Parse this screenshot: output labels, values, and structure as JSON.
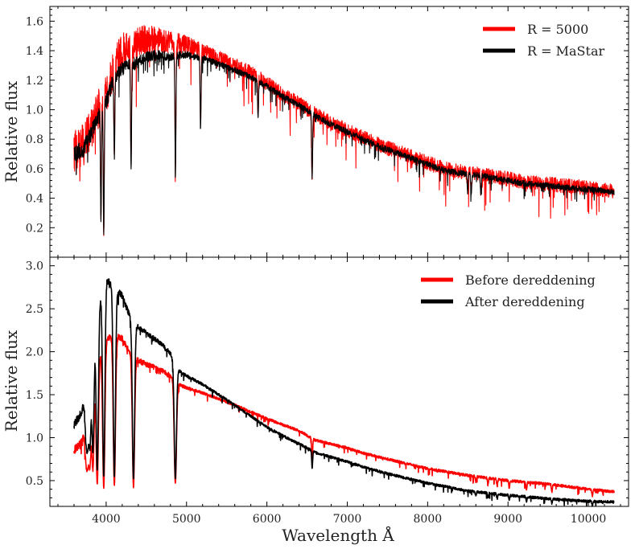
{
  "chart_data": [
    {
      "type": "line",
      "panel": "top",
      "title": "",
      "xlabel": "",
      "ylabel": "Relative flux",
      "xlim": [
        3300,
        10500
      ],
      "ylim": [
        0.0,
        1.7
      ],
      "xticks": [
        4000,
        5000,
        6000,
        7000,
        8000,
        9000,
        10000
      ],
      "yticks": [
        "0.2",
        "0.4",
        "0.6",
        "0.8",
        "1.0",
        "1.2",
        "1.4",
        "1.6"
      ],
      "show_x_tick_labels": false,
      "grid": false,
      "legend_position": "top-right",
      "series": [
        {
          "name": "R = 5000",
          "color": "#ff0000",
          "noise": 0.1,
          "x": [
            3600,
            3700,
            3800,
            3900,
            4000,
            4100,
            4200,
            4300,
            4400,
            4500,
            4600,
            4700,
            4800,
            4900,
            5000,
            5200,
            5400,
            5600,
            5800,
            6000,
            6200,
            6400,
            6600,
            6800,
            7000,
            7200,
            7400,
            7600,
            7800,
            8000,
            8200,
            8400,
            8600,
            8800,
            9000,
            9200,
            9400,
            9600,
            9800,
            10000,
            10200,
            10320
          ],
          "y": [
            0.7,
            0.75,
            0.85,
            1.0,
            1.1,
            1.3,
            1.4,
            1.42,
            1.45,
            1.48,
            1.48,
            1.47,
            1.45,
            1.45,
            1.44,
            1.4,
            1.35,
            1.3,
            1.25,
            1.18,
            1.1,
            1.04,
            0.97,
            0.91,
            0.86,
            0.81,
            0.76,
            0.72,
            0.68,
            0.64,
            0.6,
            0.58,
            0.57,
            0.55,
            0.53,
            0.51,
            0.5,
            0.49,
            0.48,
            0.47,
            0.455,
            0.45
          ]
        },
        {
          "name": "R = MaStar",
          "color": "#000000",
          "noise": 0.04,
          "x": [
            3600,
            3700,
            3800,
            3900,
            4000,
            4100,
            4200,
            4300,
            4400,
            4500,
            4600,
            4700,
            4800,
            4900,
            5000,
            5200,
            5400,
            5600,
            5800,
            6000,
            6200,
            6400,
            6600,
            6800,
            7000,
            7200,
            7400,
            7600,
            7800,
            8000,
            8200,
            8400,
            8600,
            8800,
            9000,
            9200,
            9400,
            9600,
            9800,
            10000,
            10200,
            10320
          ],
          "y": [
            0.7,
            0.72,
            0.82,
            0.95,
            1.05,
            1.22,
            1.28,
            1.3,
            1.32,
            1.36,
            1.37,
            1.37,
            1.36,
            1.37,
            1.37,
            1.35,
            1.31,
            1.27,
            1.22,
            1.16,
            1.09,
            1.03,
            0.96,
            0.9,
            0.85,
            0.8,
            0.75,
            0.71,
            0.67,
            0.63,
            0.59,
            0.57,
            0.56,
            0.54,
            0.52,
            0.5,
            0.49,
            0.48,
            0.47,
            0.46,
            0.45,
            0.44
          ]
        }
      ],
      "absorption_lines": [
        {
          "x": 3970,
          "depth": 0.85
        },
        {
          "x": 3935,
          "depth": 0.75
        },
        {
          "x": 4102,
          "depth": 0.45
        },
        {
          "x": 4310,
          "depth": 0.55
        },
        {
          "x": 4862,
          "depth": 0.6
        },
        {
          "x": 5175,
          "depth": 0.35
        },
        {
          "x": 5890,
          "depth": 0.2
        },
        {
          "x": 6563,
          "depth": 0.45
        },
        {
          "x": 8498,
          "depth": 0.22
        },
        {
          "x": 8542,
          "depth": 0.25
        },
        {
          "x": 8662,
          "depth": 0.23
        }
      ]
    },
    {
      "type": "line",
      "panel": "bottom",
      "title": "",
      "xlabel": "Wavelength Å",
      "ylabel": "Relative flux",
      "xlim": [
        3300,
        10500
      ],
      "ylim": [
        0.2,
        3.1
      ],
      "xticks": [
        4000,
        5000,
        6000,
        7000,
        8000,
        9000,
        10000
      ],
      "xtick_labels": [
        "4000",
        "5000",
        "6000",
        "7000",
        "8000",
        "9000",
        "10000"
      ],
      "yticks": [
        "0.5",
        "1.0",
        "1.5",
        "2.0",
        "2.5",
        "3.0"
      ],
      "show_x_tick_labels": true,
      "grid": false,
      "legend_position": "top-right",
      "series": [
        {
          "name": "Before dereddening",
          "color": "#ff0000",
          "noise": 0.03,
          "x": [
            3600,
            3700,
            3800,
            3900,
            4000,
            4100,
            4200,
            4300,
            4400,
            4500,
            4600,
            4700,
            4800,
            4900,
            5000,
            5200,
            5400,
            5600,
            5800,
            6000,
            6200,
            6400,
            6600,
            6700,
            7000,
            7200,
            7500,
            8000,
            8500,
            9000,
            9500,
            10000,
            10320
          ],
          "y": [
            0.85,
            0.95,
            1.4,
            1.9,
            2.15,
            2.2,
            2.15,
            1.98,
            1.9,
            1.85,
            1.82,
            1.78,
            1.72,
            1.62,
            1.58,
            1.52,
            1.45,
            1.38,
            1.3,
            1.22,
            1.15,
            1.08,
            0.97,
            0.95,
            0.88,
            0.82,
            0.75,
            0.64,
            0.56,
            0.5,
            0.46,
            0.4,
            0.37
          ]
        },
        {
          "name": "After dereddening",
          "color": "#000000",
          "noise": 0.03,
          "x": [
            3600,
            3700,
            3800,
            3900,
            4000,
            4100,
            4200,
            4300,
            4400,
            4500,
            4600,
            4700,
            4800,
            4900,
            5000,
            5200,
            5400,
            5600,
            5800,
            6000,
            6200,
            6400,
            6600,
            6700,
            7000,
            7200,
            7500,
            8000,
            8500,
            9000,
            9500,
            10000,
            10320
          ],
          "y": [
            1.15,
            1.3,
            1.9,
            2.55,
            2.85,
            2.75,
            2.65,
            2.4,
            2.28,
            2.22,
            2.15,
            2.08,
            1.98,
            1.78,
            1.72,
            1.62,
            1.5,
            1.38,
            1.25,
            1.12,
            1.02,
            0.93,
            0.83,
            0.8,
            0.72,
            0.66,
            0.58,
            0.47,
            0.38,
            0.33,
            0.29,
            0.26,
            0.25
          ]
        }
      ],
      "absorption_lines": [
        {
          "x": 3750,
          "depth": 0.35
        },
        {
          "x": 3771,
          "depth": 0.4
        },
        {
          "x": 3798,
          "depth": 0.5
        },
        {
          "x": 3835,
          "depth": 0.6
        },
        {
          "x": 3889,
          "depth": 0.75
        },
        {
          "x": 3970,
          "depth": 0.8
        },
        {
          "x": 4102,
          "depth": 0.8
        },
        {
          "x": 4340,
          "depth": 0.78
        },
        {
          "x": 4861,
          "depth": 0.72
        },
        {
          "x": 6563,
          "depth": 0.25
        },
        {
          "x": 8600,
          "depth": 0.12
        },
        {
          "x": 8750,
          "depth": 0.15
        },
        {
          "x": 8865,
          "depth": 0.16
        },
        {
          "x": 9015,
          "depth": 0.17
        },
        {
          "x": 9229,
          "depth": 0.18
        },
        {
          "x": 9546,
          "depth": 0.18
        },
        {
          "x": 10049,
          "depth": 0.2
        }
      ]
    }
  ]
}
